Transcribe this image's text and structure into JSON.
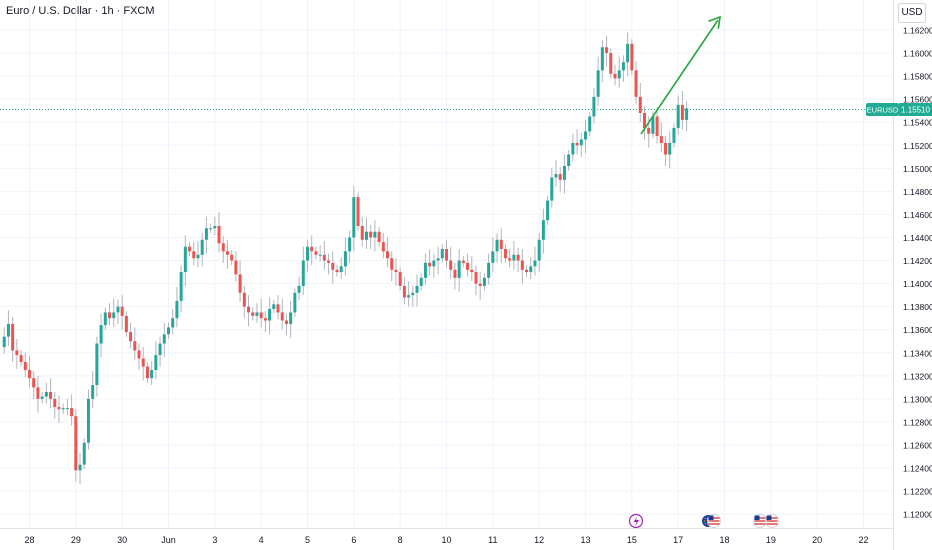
{
  "header": {
    "title": "Euro / U.S. Dollar · 1h · FXCM",
    "currency_button": "USD"
  },
  "colors": {
    "up": "#26a69a",
    "down": "#ef5350",
    "wick": "#b2b5be",
    "grid": "#f0f3fa",
    "axis_text": "#131722",
    "badge": "#22ab94",
    "arrow": "#26a63a",
    "event_purple": "#9c27b0"
  },
  "icons": {
    "event_flash": "lightning-icon",
    "event_eu": "eu-flag-icon",
    "event_us": "us-flag-icon"
  },
  "chart_data": {
    "type": "candlestick",
    "symbol": "EURUSD",
    "last_price": "1.15510",
    "ylim": [
      1.1188,
      1.1646
    ],
    "y_ticks": [
      "1.12000",
      "1.12200",
      "1.12400",
      "1.12600",
      "1.12800",
      "1.13000",
      "1.13200",
      "1.13400",
      "1.13600",
      "1.13800",
      "1.14000",
      "1.14200",
      "1.14400",
      "1.14600",
      "1.14800",
      "1.15000",
      "1.15200",
      "1.15400",
      "1.15600",
      "1.15800",
      "1.16000",
      "1.16200"
    ],
    "x_ticks": [
      "28",
      "29",
      "30",
      "Jun",
      "3",
      "4",
      "5",
      "6",
      "8",
      "10",
      "11",
      "12",
      "13",
      "15",
      "17",
      "18",
      "19",
      "20",
      "22"
    ],
    "x_tick_values": [
      7,
      18,
      29,
      40,
      51,
      62,
      73,
      84,
      95,
      106,
      117,
      128,
      139,
      150,
      161,
      172,
      183,
      194,
      205
    ],
    "x_range": [
      0,
      212
    ],
    "price_series": [
      [
        0,
        1.1345
      ],
      [
        1,
        1.1354
      ],
      [
        2,
        1.1365
      ],
      [
        3,
        1.1342
      ],
      [
        4,
        1.1338
      ],
      [
        5,
        1.1332
      ],
      [
        6,
        1.1325
      ],
      [
        7,
        1.1318
      ],
      [
        8,
        1.131
      ],
      [
        9,
        1.13
      ],
      [
        10,
        1.1302
      ],
      [
        11,
        1.1306
      ],
      [
        12,
        1.13
      ],
      [
        13,
        1.1293
      ],
      [
        14,
        1.1291
      ],
      [
        15,
        1.1292
      ],
      [
        16,
        1.1292
      ],
      [
        17,
        1.1285
      ],
      [
        18,
        1.1238
      ],
      [
        19,
        1.1243
      ],
      [
        20,
        1.1262
      ],
      [
        21,
        1.13
      ],
      [
        22,
        1.1312
      ],
      [
        23,
        1.1348
      ],
      [
        24,
        1.1364
      ],
      [
        25,
        1.1375
      ],
      [
        26,
        1.137
      ],
      [
        27,
        1.1375
      ],
      [
        28,
        1.138
      ],
      [
        29,
        1.1372
      ],
      [
        30,
        1.1358
      ],
      [
        31,
        1.135
      ],
      [
        32,
        1.1342
      ],
      [
        33,
        1.1335
      ],
      [
        34,
        1.1328
      ],
      [
        35,
        1.1318
      ],
      [
        36,
        1.1325
      ],
      [
        37,
        1.1338
      ],
      [
        38,
        1.1348
      ],
      [
        39,
        1.1356
      ],
      [
        40,
        1.1362
      ],
      [
        41,
        1.137
      ],
      [
        42,
        1.1385
      ],
      [
        43,
        1.141
      ],
      [
        44,
        1.1432
      ],
      [
        45,
        1.1428
      ],
      [
        46,
        1.1422
      ],
      [
        47,
        1.1425
      ],
      [
        48,
        1.1438
      ],
      [
        49,
        1.1448
      ],
      [
        50,
        1.1448
      ],
      [
        51,
        1.145
      ],
      [
        52,
        1.1435
      ],
      [
        53,
        1.1428
      ],
      [
        54,
        1.1425
      ],
      [
        55,
        1.142
      ],
      [
        56,
        1.1408
      ],
      [
        57,
        1.1392
      ],
      [
        58,
        1.138
      ],
      [
        59,
        1.1375
      ],
      [
        60,
        1.1372
      ],
      [
        61,
        1.1375
      ],
      [
        62,
        1.137
      ],
      [
        63,
        1.1368
      ],
      [
        64,
        1.1378
      ],
      [
        65,
        1.1382
      ],
      [
        66,
        1.1375
      ],
      [
        67,
        1.1368
      ],
      [
        68,
        1.1365
      ],
      [
        69,
        1.1375
      ],
      [
        70,
        1.1392
      ],
      [
        71,
        1.1398
      ],
      [
        72,
        1.142
      ],
      [
        73,
        1.1432
      ],
      [
        74,
        1.1428
      ],
      [
        75,
        1.1425
      ],
      [
        76,
        1.1425
      ],
      [
        77,
        1.142
      ],
      [
        78,
        1.1418
      ],
      [
        79,
        1.1412
      ],
      [
        80,
        1.141
      ],
      [
        81,
        1.1415
      ],
      [
        82,
        1.1428
      ],
      [
        83,
        1.144
      ],
      [
        84,
        1.1475
      ],
      [
        85,
        1.145
      ],
      [
        86,
        1.1438
      ],
      [
        87,
        1.1445
      ],
      [
        88,
        1.144
      ],
      [
        89,
        1.1445
      ],
      [
        90,
        1.1436
      ],
      [
        91,
        1.1428
      ],
      [
        92,
        1.1422
      ],
      [
        93,
        1.1412
      ],
      [
        94,
        1.141
      ],
      [
        95,
        1.1398
      ],
      [
        96,
        1.1388
      ],
      [
        97,
        1.139
      ],
      [
        98,
        1.1392
      ],
      [
        99,
        1.1398
      ],
      [
        100,
        1.1405
      ],
      [
        101,
        1.1418
      ],
      [
        102,
        1.1415
      ],
      [
        103,
        1.142
      ],
      [
        104,
        1.1422
      ],
      [
        105,
        1.143
      ],
      [
        106,
        1.142
      ],
      [
        107,
        1.1412
      ],
      [
        108,
        1.1405
      ],
      [
        109,
        1.142
      ],
      [
        110,
        1.1418
      ],
      [
        111,
        1.1412
      ],
      [
        112,
        1.141
      ],
      [
        113,
        1.14
      ],
      [
        114,
        1.1398
      ],
      [
        115,
        1.1405
      ],
      [
        116,
        1.1418
      ],
      [
        117,
        1.1428
      ],
      [
        118,
        1.1438
      ],
      [
        119,
        1.143
      ],
      [
        120,
        1.1422
      ],
      [
        121,
        1.142
      ],
      [
        122,
        1.1425
      ],
      [
        123,
        1.142
      ],
      [
        124,
        1.1412
      ],
      [
        125,
        1.141
      ],
      [
        126,
        1.1415
      ],
      [
        127,
        1.142
      ],
      [
        128,
        1.1438
      ],
      [
        129,
        1.1455
      ],
      [
        130,
        1.1472
      ],
      [
        131,
        1.1492
      ],
      [
        132,
        1.1495
      ],
      [
        133,
        1.149
      ],
      [
        134,
        1.1502
      ],
      [
        135,
        1.1512
      ],
      [
        136,
        1.1522
      ],
      [
        137,
        1.152
      ],
      [
        138,
        1.1525
      ],
      [
        139,
        1.1532
      ],
      [
        140,
        1.1545
      ],
      [
        141,
        1.1562
      ],
      [
        142,
        1.1585
      ],
      [
        143,
        1.1605
      ],
      [
        144,
        1.16
      ],
      [
        145,
        1.1582
      ],
      [
        146,
        1.1578
      ],
      [
        147,
        1.1585
      ],
      [
        148,
        1.1592
      ],
      [
        149,
        1.1608
      ],
      [
        150,
        1.1585
      ],
      [
        151,
        1.1562
      ],
      [
        152,
        1.1548
      ],
      [
        153,
        1.1535
      ],
      [
        154,
        1.153
      ],
      [
        155,
        1.1545
      ],
      [
        156,
        1.1528
      ],
      [
        157,
        1.1522
      ],
      [
        158,
        1.1512
      ],
      [
        159,
        1.1522
      ],
      [
        160,
        1.1535
      ],
      [
        161,
        1.1555
      ],
      [
        162,
        1.1542
      ],
      [
        163,
        1.1552
      ]
    ]
  }
}
